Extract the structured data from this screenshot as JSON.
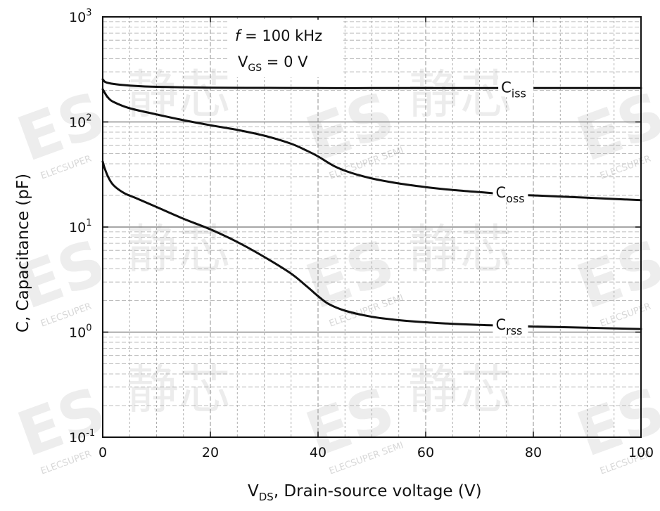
{
  "chart_data": {
    "type": "line",
    "title": "",
    "xlabel": {
      "main": "V",
      "sub": "DS",
      "rest": ", Drain-source voltage (V)"
    },
    "ylabel": "C, Capacitance (pF)",
    "xlim": [
      0,
      100
    ],
    "ylim": [
      0.1,
      1000
    ],
    "yscale": "log",
    "grid": true,
    "x_ticks": [
      0,
      20,
      40,
      60,
      80,
      100
    ],
    "x_tick_labels": [
      "0",
      "20",
      "40",
      "60",
      "80",
      "100"
    ],
    "y_ticks": [
      0.1,
      1,
      10,
      100,
      1000
    ],
    "y_tick_labels": [
      {
        "base": "10",
        "exp": "-1"
      },
      {
        "base": "10",
        "exp": "0"
      },
      {
        "base": "10",
        "exp": "1"
      },
      {
        "base": "10",
        "exp": "2"
      },
      {
        "base": "10",
        "exp": "3"
      }
    ],
    "conditions": {
      "freq_symbol": "f",
      "freq_rest": " = 100 kHz",
      "vgs_main": "V",
      "vgs_sub": "GS",
      "vgs_rest": " = 0 V"
    },
    "series": [
      {
        "name": "Ciss",
        "label_main": "C",
        "label_sub": "iss",
        "label_at_x": 74,
        "x": [
          0,
          0.5,
          2,
          5,
          10,
          20,
          30,
          40,
          50,
          60,
          70,
          80,
          90,
          100
        ],
        "y": [
          255,
          240,
          230,
          222,
          216,
          212,
          211,
          210,
          210,
          210,
          210,
          210,
          210,
          210
        ]
      },
      {
        "name": "Coss",
        "label_main": "C",
        "label_sub": "oss",
        "label_at_x": 73,
        "x": [
          0,
          0.5,
          1,
          2,
          5,
          10,
          15,
          20,
          25,
          30,
          35,
          38,
          40,
          43,
          46,
          50,
          55,
          60,
          65,
          70,
          75,
          80,
          90,
          100
        ],
        "y": [
          205,
          185,
          170,
          155,
          135,
          118,
          104,
          93,
          84,
          74,
          62,
          53,
          47,
          38,
          33,
          29,
          26,
          24,
          22.5,
          21.5,
          20.5,
          20,
          19,
          18
        ]
      },
      {
        "name": "Crss",
        "label_main": "C",
        "label_sub": "rss",
        "label_at_x": 73,
        "x": [
          0,
          0.3,
          1,
          2,
          4,
          6,
          10,
          15,
          20,
          25,
          30,
          35,
          38,
          40,
          42,
          45,
          50,
          55,
          60,
          65,
          70,
          75,
          80,
          90,
          100
        ],
        "y": [
          42,
          37,
          30,
          25,
          21,
          19,
          15.5,
          12,
          9.5,
          7.2,
          5.2,
          3.6,
          2.7,
          2.2,
          1.85,
          1.6,
          1.4,
          1.3,
          1.24,
          1.2,
          1.17,
          1.15,
          1.13,
          1.1,
          1.07
        ]
      }
    ]
  },
  "watermark": {
    "brand": "ELECSUPER",
    "brand_semi": "ELECSUPER SEMI",
    "logo": "ES",
    "cjk": "静芯"
  }
}
